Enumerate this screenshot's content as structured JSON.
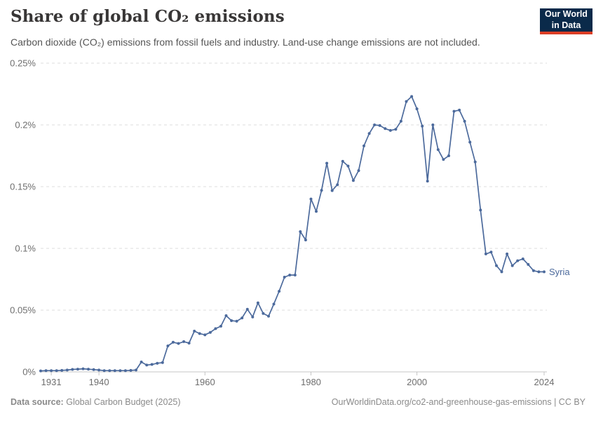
{
  "header": {
    "title": "Share of global CO₂ emissions",
    "subtitle": "Carbon dioxide (CO₂) emissions from fossil fuels and industry. Land-use change emissions are not included.",
    "logo_line1": "Our World",
    "logo_line2": "in Data",
    "logo_bg_color": "#0a2a4a",
    "logo_accent_color": "#dc3e26"
  },
  "footer": {
    "data_source_label": "Data source:",
    "data_source_value": "Global Carbon Budget (2025)",
    "attribution": "OurWorldinData.org/co2-and-greenhouse-gas-emissions | CC BY"
  },
  "chart_data": {
    "type": "line",
    "title": "Share of global CO₂ emissions",
    "xlabel": "",
    "ylabel": "",
    "unit": "%",
    "grid": "horizontal-dashed",
    "xlim": [
      1929,
      2024
    ],
    "ylim": [
      0,
      0.25
    ],
    "x_ticks": [
      1931,
      1940,
      1960,
      1980,
      2000,
      2024
    ],
    "y_ticks": [
      {
        "value": 0,
        "label": "0%"
      },
      {
        "value": 0.05,
        "label": "0.05%"
      },
      {
        "value": 0.1,
        "label": "0.1%"
      },
      {
        "value": 0.15,
        "label": "0.15%"
      },
      {
        "value": 0.2,
        "label": "0.2%"
      },
      {
        "value": 0.25,
        "label": "0.25%"
      }
    ],
    "legend_position": "end-of-line-label",
    "series": [
      {
        "name": "Syria",
        "color": "#4C6A9C",
        "years": [
          1929,
          1930,
          1931,
          1932,
          1933,
          1934,
          1935,
          1936,
          1937,
          1938,
          1939,
          1940,
          1941,
          1942,
          1943,
          1944,
          1945,
          1946,
          1947,
          1948,
          1949,
          1950,
          1951,
          1952,
          1953,
          1954,
          1955,
          1956,
          1957,
          1958,
          1959,
          1960,
          1961,
          1962,
          1963,
          1964,
          1965,
          1966,
          1967,
          1968,
          1969,
          1970,
          1971,
          1972,
          1973,
          1974,
          1975,
          1976,
          1977,
          1978,
          1979,
          1980,
          1981,
          1982,
          1983,
          1984,
          1985,
          1986,
          1987,
          1988,
          1989,
          1990,
          1991,
          1992,
          1993,
          1994,
          1995,
          1996,
          1997,
          1998,
          1999,
          2000,
          2001,
          2002,
          2003,
          2004,
          2005,
          2006,
          2007,
          2008,
          2009,
          2010,
          2011,
          2012,
          2013,
          2014,
          2015,
          2016,
          2017,
          2018,
          2019,
          2020,
          2021,
          2022,
          2023,
          2024
        ],
        "values": [
          0.0008,
          0.001,
          0.001,
          0.001,
          0.0012,
          0.0015,
          0.002,
          0.0022,
          0.0025,
          0.0022,
          0.0018,
          0.0015,
          0.001,
          0.001,
          0.001,
          0.001,
          0.001,
          0.0012,
          0.0015,
          0.008,
          0.0055,
          0.006,
          0.007,
          0.0075,
          0.021,
          0.024,
          0.023,
          0.0245,
          0.0233,
          0.033,
          0.031,
          0.03,
          0.032,
          0.035,
          0.037,
          0.0455,
          0.0415,
          0.041,
          0.0437,
          0.0507,
          0.0445,
          0.0559,
          0.0473,
          0.0451,
          0.0549,
          0.0653,
          0.0767,
          0.0784,
          0.0784,
          0.1136,
          0.1068,
          0.14,
          0.13,
          0.147,
          0.169,
          0.1468,
          0.1516,
          0.1705,
          0.1667,
          0.155,
          0.163,
          0.183,
          0.193,
          0.2,
          0.1995,
          0.197,
          0.1955,
          0.1965,
          0.203,
          0.219,
          0.223,
          0.213,
          0.199,
          0.1545,
          0.2,
          0.18,
          0.172,
          0.175,
          0.211,
          0.212,
          0.203,
          0.186,
          0.17,
          0.131,
          0.0955,
          0.097,
          0.086,
          0.081,
          0.0955,
          0.086,
          0.09,
          0.0915,
          0.087,
          0.082,
          0.081,
          0.081
        ]
      }
    ],
    "colors": {
      "line": "#4C6A9C",
      "gridline": "#dcdcdc",
      "axis": "#c4c4c4",
      "tick_text": "#6e6e6e"
    }
  }
}
